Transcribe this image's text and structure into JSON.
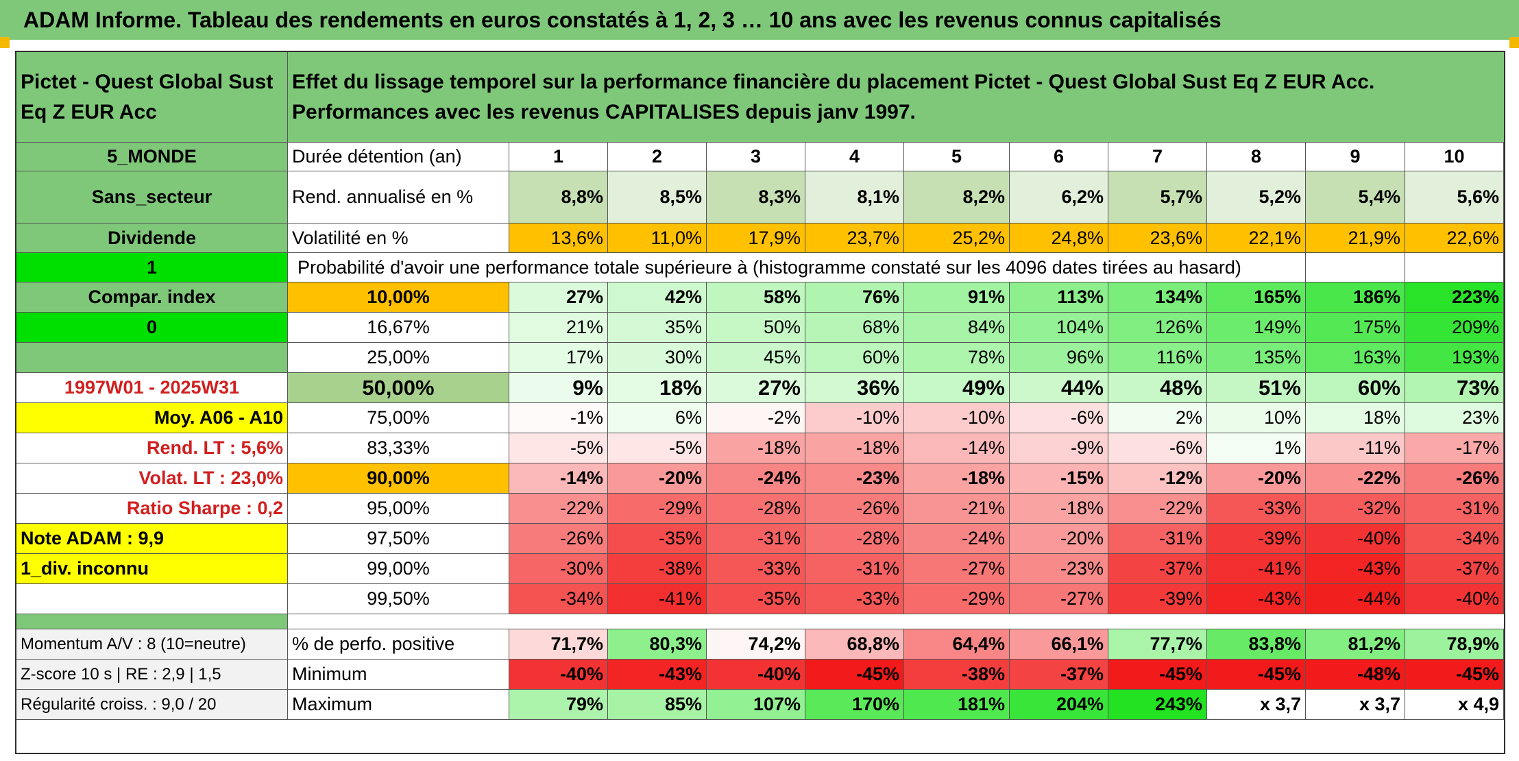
{
  "title": "ADAM Informe. Tableau des rendements en euros constatés à 1, 2, 3 … 10 ans avec les revenus connus capitalisés",
  "fund": {
    "name": "Pictet - Quest Global Sust Eq Z EUR Acc",
    "description": "Effet du lissage temporel sur la performance financière du placement Pictet - Quest Global Sust Eq Z EUR Acc. Performances avec les revenus CAPITALISES depuis janv 1997."
  },
  "side": {
    "zone": "5_MONDE",
    "secteur": "Sans_secteur",
    "dividende": "Dividende",
    "flag1": "1",
    "compar": "Compar. index",
    "flag0": "0",
    "period": "1997W01 - 2025W31",
    "moy": "Moy. A06 - A10",
    "rend_lt": "Rend. LT :   5,6%",
    "volat_lt": "Volat. LT :   23,0%",
    "sharpe": "Ratio Sharpe :    0,2",
    "note": "Note ADAM : 9,9",
    "div": "1_div. inconnu",
    "momentum": "Momentum A/V : 8 (10=neutre)",
    "zscore": "Z-score 10 s | RE : 2,9 | 1,5",
    "regularite": "Régularité croiss. : 9,0 / 20"
  },
  "labels": {
    "duree": "Durée détention (an)",
    "rend": "Rend. annualisé en %",
    "volat": "Volatilité en %",
    "proba": "Probabilité d'avoir une performance totale supérieure à (histogramme constaté sur les 4096 dates tirées au hasard)",
    "positive": "% de perfo. positive",
    "minimum": "Minimum",
    "maximum": "Maximum"
  },
  "years": [
    "1",
    "2",
    "3",
    "4",
    "5",
    "6",
    "7",
    "8",
    "9",
    "10"
  ],
  "rendements": [
    "8,8%",
    "8,5%",
    "8,3%",
    "8,1%",
    "8,2%",
    "6,2%",
    "5,7%",
    "5,2%",
    "5,4%",
    "5,6%"
  ],
  "volatilites": [
    "13,6%",
    "11,0%",
    "17,9%",
    "23,7%",
    "25,2%",
    "24,8%",
    "23,6%",
    "22,1%",
    "21,9%",
    "22,6%"
  ],
  "percentile_rows": [
    {
      "p": "10,00%",
      "values": [
        "27%",
        "42%",
        "58%",
        "76%",
        "91%",
        "113%",
        "134%",
        "165%",
        "186%",
        "223%"
      ]
    },
    {
      "p": "16,67%",
      "values": [
        "21%",
        "35%",
        "50%",
        "68%",
        "84%",
        "104%",
        "126%",
        "149%",
        "175%",
        "209%"
      ]
    },
    {
      "p": "25,00%",
      "values": [
        "17%",
        "30%",
        "45%",
        "60%",
        "78%",
        "96%",
        "116%",
        "135%",
        "163%",
        "193%"
      ]
    },
    {
      "p": "50,00%",
      "values": [
        "9%",
        "18%",
        "27%",
        "36%",
        "49%",
        "44%",
        "48%",
        "51%",
        "60%",
        "73%"
      ]
    },
    {
      "p": "75,00%",
      "values": [
        "-1%",
        "6%",
        "-2%",
        "-10%",
        "-10%",
        "-6%",
        "2%",
        "10%",
        "18%",
        "23%"
      ]
    },
    {
      "p": "83,33%",
      "values": [
        "-5%",
        "-5%",
        "-18%",
        "-18%",
        "-14%",
        "-9%",
        "-6%",
        "1%",
        "-11%",
        "-17%"
      ]
    },
    {
      "p": "90,00%",
      "values": [
        "-14%",
        "-20%",
        "-24%",
        "-23%",
        "-18%",
        "-15%",
        "-12%",
        "-20%",
        "-22%",
        "-26%"
      ]
    },
    {
      "p": "95,00%",
      "values": [
        "-22%",
        "-29%",
        "-28%",
        "-26%",
        "-21%",
        "-18%",
        "-22%",
        "-33%",
        "-32%",
        "-31%"
      ]
    },
    {
      "p": "97,50%",
      "values": [
        "-26%",
        "-35%",
        "-31%",
        "-28%",
        "-24%",
        "-20%",
        "-31%",
        "-39%",
        "-40%",
        "-34%"
      ]
    },
    {
      "p": "99,00%",
      "values": [
        "-30%",
        "-38%",
        "-33%",
        "-31%",
        "-27%",
        "-23%",
        "-37%",
        "-41%",
        "-43%",
        "-37%"
      ]
    },
    {
      "p": "99,50%",
      "values": [
        "-34%",
        "-41%",
        "-35%",
        "-33%",
        "-29%",
        "-27%",
        "-39%",
        "-43%",
        "-44%",
        "-40%"
      ]
    }
  ],
  "positive": [
    "71,7%",
    "80,3%",
    "74,2%",
    "68,8%",
    "64,4%",
    "66,1%",
    "77,7%",
    "83,8%",
    "81,2%",
    "78,9%"
  ],
  "minimum": [
    "-40%",
    "-43%",
    "-40%",
    "-45%",
    "-38%",
    "-37%",
    "-45%",
    "-45%",
    "-48%",
    "-45%"
  ],
  "maximum": [
    "79%",
    "85%",
    "107%",
    "170%",
    "181%",
    "204%",
    "243%",
    "x 3,7",
    "x 3,7",
    "x 4,9"
  ],
  "colors": {
    "header_green": "#7fc87a",
    "rend_green": "#c6e0b4",
    "volat_orange": "#ffc000",
    "bright_green": "#00e000",
    "yellow": "#ffff00",
    "red_text": "#d11f1f"
  }
}
